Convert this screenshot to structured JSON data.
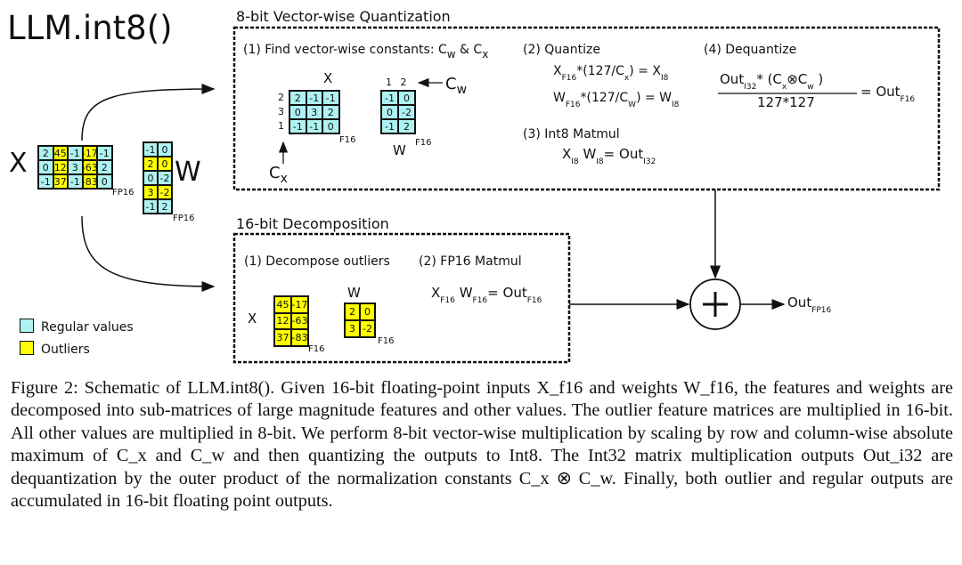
{
  "title": "LLM.int8()",
  "colors": {
    "regular": "#aef2f2",
    "outlier": "#ffff00"
  },
  "input": {
    "x_label": "X",
    "w_label": "W",
    "x_dtype": "FP16",
    "w_dtype": "FP16",
    "x": [
      [
        2,
        45,
        -1,
        -17,
        -1
      ],
      [
        0,
        12,
        3,
        -63,
        2
      ],
      [
        -1,
        37,
        -1,
        -83,
        0
      ]
    ],
    "x_outlier_cols": [
      1,
      3
    ],
    "w": [
      [
        -1,
        0
      ],
      [
        2,
        0
      ],
      [
        0,
        -2
      ],
      [
        3,
        -2
      ],
      [
        -1,
        2
      ]
    ],
    "w_outlier_rows": [
      1,
      3
    ]
  },
  "legend": {
    "regular": "Regular values",
    "outliers": "Outliers"
  },
  "quant": {
    "heading": "8-bit Vector-wise Quantization",
    "step1": {
      "label": "(1) Find vector-wise constants: C",
      "w_sub": "w",
      "amp": " & C",
      "x_sub": "x",
      "x_label": "X",
      "w_label": "W",
      "dtype": "F16",
      "cw_label": "C",
      "cw_sub": "w",
      "cx_label": "C",
      "cx_sub": "x",
      "row_consts": [
        "2",
        "3",
        "1"
      ],
      "col_consts": [
        "1",
        "2"
      ],
      "x": [
        [
          2,
          -1,
          -1
        ],
        [
          0,
          3,
          2
        ],
        [
          -1,
          -1,
          0
        ]
      ],
      "w": [
        [
          -1,
          0
        ],
        [
          0,
          -2
        ],
        [
          -1,
          2
        ]
      ]
    },
    "step2": {
      "label": "(2) Quantize",
      "eq1": [
        "X",
        "F16",
        "*(127/C",
        "x",
        ") = X",
        "I8"
      ],
      "eq2": [
        "W",
        "F16",
        "*(127/C",
        "W",
        ") = W",
        "I8"
      ]
    },
    "step3": {
      "label": "(3) Int8 Matmul",
      "eq": [
        "X",
        "I8",
        " W",
        "I8",
        "= Out",
        "I32"
      ]
    },
    "step4": {
      "label": "(4) Dequantize",
      "num": [
        "Out",
        "I32",
        "*  (C",
        "x",
        "⊗C",
        "w",
        " )"
      ],
      "den": "127*127",
      "rhs": [
        "= Out",
        "F16"
      ]
    }
  },
  "decomp": {
    "heading": "16-bit Decomposition",
    "step1": {
      "label": "(1) Decompose outliers",
      "x_label": "X",
      "w_label": "W",
      "dtype": "F16",
      "x": [
        [
          45,
          -17
        ],
        [
          12,
          -63
        ],
        [
          37,
          -83
        ]
      ],
      "w": [
        [
          2,
          0
        ],
        [
          3,
          -2
        ]
      ]
    },
    "step2": {
      "label": "(2) FP16 Matmul",
      "eq": [
        "X",
        "F16",
        " W",
        "F16",
        "= Out",
        "F16"
      ]
    }
  },
  "sum": {
    "symbol": "+",
    "out": "Out",
    "out_sub": "FP16"
  },
  "caption": "Figure 2: Schematic of LLM.int8(). Given 16-bit floating-point inputs X_f16 and weights W_f16, the features and weights are decomposed into sub-matrices of large magnitude features and other values. The outlier feature matrices are multiplied in 16-bit. All other values are multiplied in 8-bit. We perform 8-bit vector-wise multiplication by scaling by row and column-wise absolute maximum of C_x and C_w and then quantizing the outputs to Int8. The Int32 matrix multiplication outputs Out_i32 are dequantization by the outer product of the normalization constants C_x ⊗ C_w. Finally, both outlier and regular outputs are accumulated in 16-bit floating point outputs."
}
